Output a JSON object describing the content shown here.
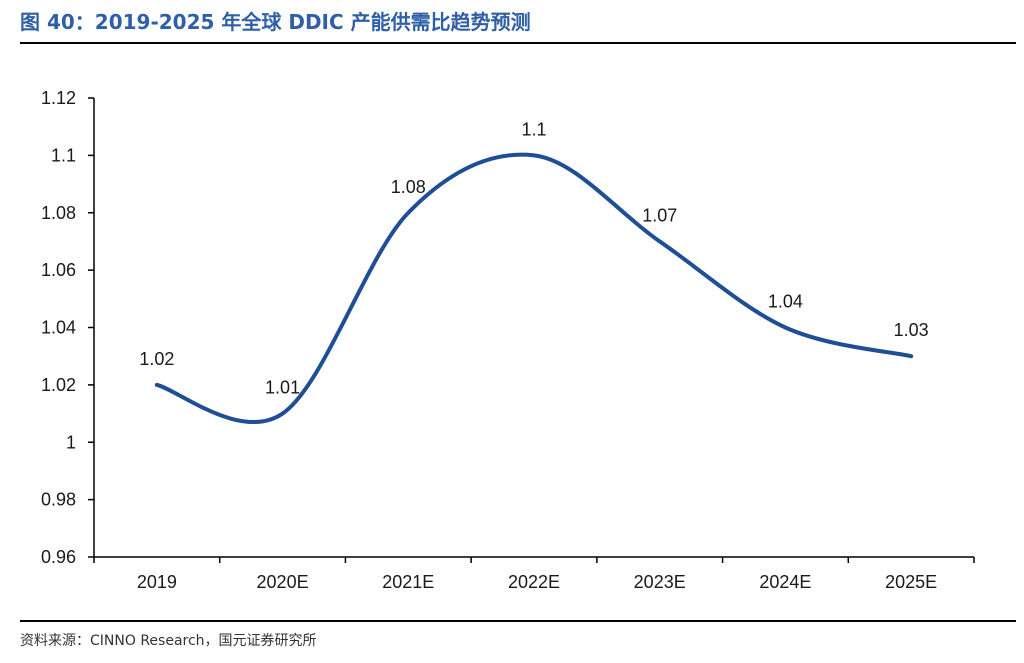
{
  "figure": {
    "title": "图 40：2019-2025 年全球 DDIC 产能供需比趋势预测",
    "source": "资料来源：CINNO Research，国元证券研究所"
  },
  "colors": {
    "title": "#2f5fa7",
    "series_line": "#1f4e96",
    "axis": "#000000"
  },
  "chart_data": {
    "type": "line",
    "title": "",
    "xlabel": "",
    "ylabel": "",
    "categories": [
      "2019",
      "2020E",
      "2021E",
      "2022E",
      "2023E",
      "2024E",
      "2025E"
    ],
    "series": [
      {
        "values": [
          1.02,
          1.01,
          1.08,
          1.1,
          1.07,
          1.04,
          1.03
        ],
        "data_labels": [
          "1.02",
          "1.01",
          "1.08",
          "1.1",
          "1.07",
          "1.04",
          "1.03"
        ]
      }
    ],
    "ylim": [
      0.96,
      1.12
    ],
    "y_ticks": [
      0.96,
      0.98,
      1,
      1.02,
      1.04,
      1.06,
      1.08,
      1.1,
      1.12
    ],
    "y_tick_labels": [
      "0.96",
      "0.98",
      "1",
      "1.02",
      "1.04",
      "1.06",
      "1.08",
      "1.1",
      "1.12"
    ],
    "smooth": true,
    "grid": false,
    "legend": "none"
  }
}
